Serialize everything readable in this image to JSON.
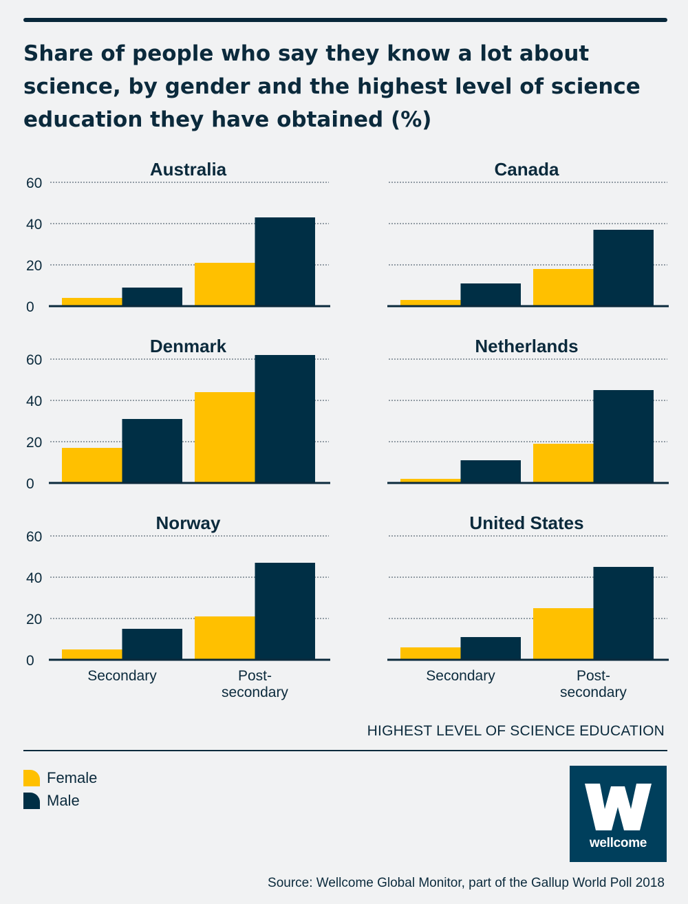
{
  "title": "Share of people who say they know a lot about science, by gender and the highest level of science education they have obtained (%)",
  "x_axis_title": "HIGHEST LEVEL OF SCIENCE EDUCATION",
  "source": "Source: Wellcome Global Monitor, part of the Gallup World Poll 2018",
  "logo_text": "wellcome",
  "colors": {
    "female": "#ffc000",
    "male": "#002f45",
    "text": "#0b2a3c",
    "background": "#f1f2f3",
    "logo_bg": "#003f5c"
  },
  "legend": [
    {
      "label": "Female",
      "color": "#ffc000"
    },
    {
      "label": "Male",
      "color": "#002f45"
    }
  ],
  "chart_data": [
    {
      "type": "bar",
      "title": "Australia",
      "categories": [
        "Secondary",
        "Post-secondary"
      ],
      "series": [
        {
          "name": "Female",
          "values": [
            4,
            21
          ]
        },
        {
          "name": "Male",
          "values": [
            9,
            43
          ]
        }
      ],
      "ylim": [
        0,
        60
      ],
      "yticks": [
        0,
        20,
        40,
        60
      ]
    },
    {
      "type": "bar",
      "title": "Canada",
      "categories": [
        "Secondary",
        "Post-secondary"
      ],
      "series": [
        {
          "name": "Female",
          "values": [
            3,
            18
          ]
        },
        {
          "name": "Male",
          "values": [
            11,
            37
          ]
        }
      ],
      "ylim": [
        0,
        60
      ],
      "yticks": [
        0,
        20,
        40,
        60
      ]
    },
    {
      "type": "bar",
      "title": "Denmark",
      "categories": [
        "Secondary",
        "Post-secondary"
      ],
      "series": [
        {
          "name": "Female",
          "values": [
            17,
            44
          ]
        },
        {
          "name": "Male",
          "values": [
            31,
            62
          ]
        }
      ],
      "ylim": [
        0,
        60
      ],
      "yticks": [
        0,
        20,
        40,
        60
      ]
    },
    {
      "type": "bar",
      "title": "Netherlands",
      "categories": [
        "Secondary",
        "Post-secondary"
      ],
      "series": [
        {
          "name": "Female",
          "values": [
            2,
            19
          ]
        },
        {
          "name": "Male",
          "values": [
            11,
            45
          ]
        }
      ],
      "ylim": [
        0,
        60
      ],
      "yticks": [
        0,
        20,
        40,
        60
      ]
    },
    {
      "type": "bar",
      "title": "Norway",
      "categories": [
        "Secondary",
        "Post-secondary"
      ],
      "series": [
        {
          "name": "Female",
          "values": [
            5,
            21
          ]
        },
        {
          "name": "Male",
          "values": [
            15,
            47
          ]
        }
      ],
      "ylim": [
        0,
        60
      ],
      "yticks": [
        0,
        20,
        40,
        60
      ]
    },
    {
      "type": "bar",
      "title": "United States",
      "categories": [
        "Secondary",
        "Post-secondary"
      ],
      "series": [
        {
          "name": "Female",
          "values": [
            6,
            25
          ]
        },
        {
          "name": "Male",
          "values": [
            11,
            45
          ]
        }
      ],
      "ylim": [
        0,
        60
      ],
      "yticks": [
        0,
        20,
        40,
        60
      ]
    }
  ]
}
